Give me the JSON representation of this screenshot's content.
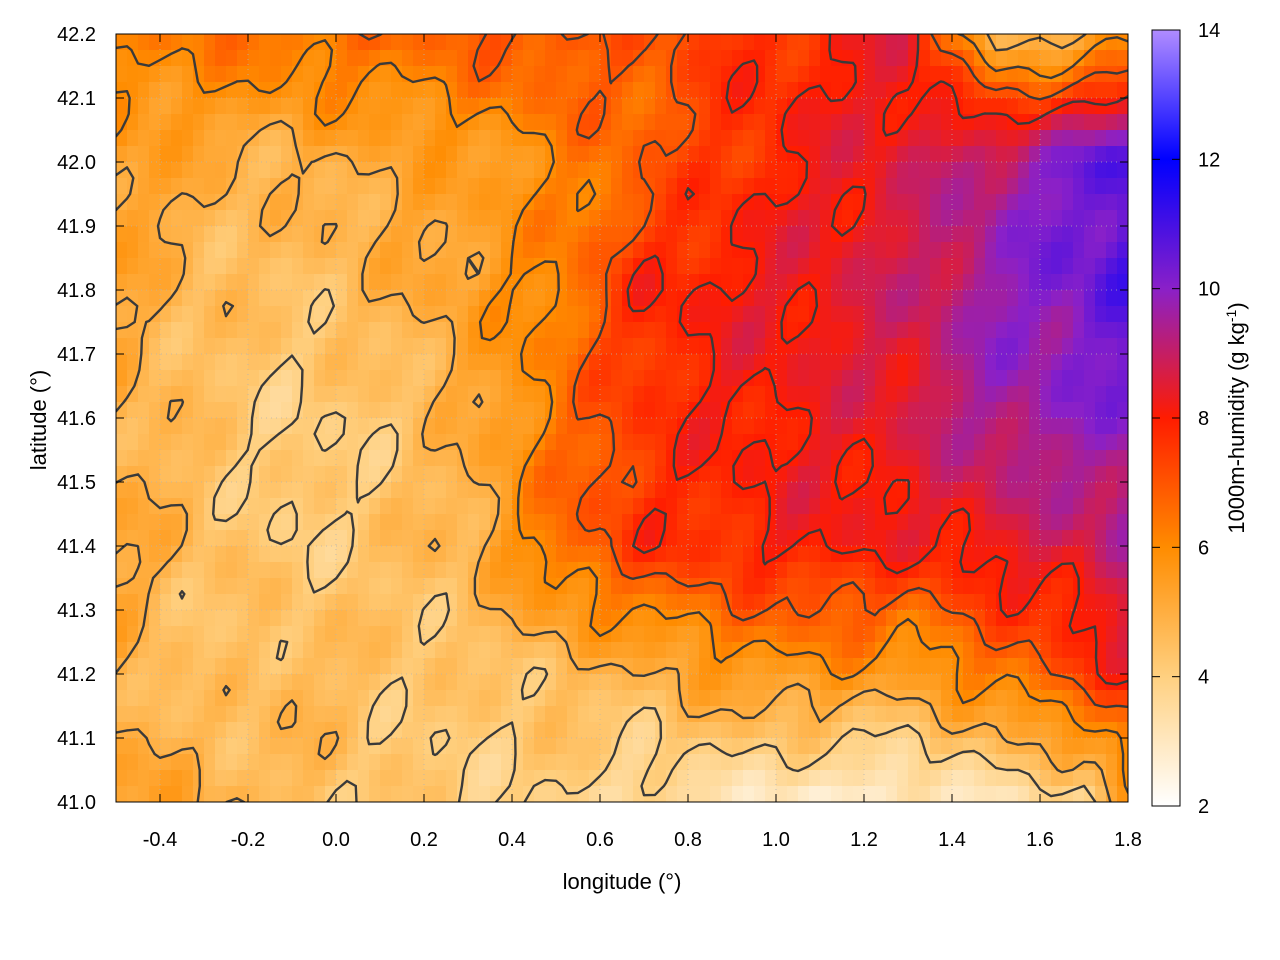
{
  "chart_data": {
    "type": "heatmap",
    "title": "",
    "xlabel": "longitude (°)",
    "ylabel": "latitude (°)",
    "colorbar_label": "1000m-humidity (g kg",
    "colorbar_label_sup": "-1",
    "colorbar_label_end": ")",
    "xlim": [
      -0.5,
      1.8
    ],
    "ylim": [
      41.0,
      42.2
    ],
    "zlim": [
      2,
      14
    ],
    "x_ticks": [
      -0.4,
      -0.2,
      0.0,
      0.2,
      0.4,
      0.6,
      0.8,
      1.0,
      1.2,
      1.4,
      1.6,
      1.8
    ],
    "x_tick_labels": [
      "-0.4",
      "-0.2",
      "0.0",
      "0.2",
      "0.4",
      "0.6",
      "0.8",
      "1.0",
      "1.2",
      "1.4",
      "1.6",
      "1.8"
    ],
    "y_ticks": [
      41.0,
      41.1,
      41.2,
      41.3,
      41.4,
      41.5,
      41.6,
      41.7,
      41.8,
      41.9,
      42.0,
      42.1,
      42.2
    ],
    "y_tick_labels": [
      "41.0",
      "41.1",
      "41.2",
      "41.3",
      "41.4",
      "41.5",
      "41.6",
      "41.7",
      "41.8",
      "41.9",
      "42.0",
      "42.1",
      "42.2"
    ],
    "z_ticks": [
      2,
      4,
      6,
      8,
      10,
      12,
      14
    ],
    "z_tick_labels": [
      "2",
      "4",
      "6",
      "8",
      "10",
      "12",
      "14"
    ],
    "colormap": [
      {
        "value": 2,
        "color": "#ffffff"
      },
      {
        "value": 4,
        "color": "#ffd080"
      },
      {
        "value": 6,
        "color": "#ff8c00"
      },
      {
        "value": 8,
        "color": "#ff1c00"
      },
      {
        "value": 10,
        "color": "#8a20c8"
      },
      {
        "value": 12,
        "color": "#0000ff"
      },
      {
        "value": 14,
        "color": "#b08cff"
      }
    ],
    "grid": true,
    "contour_levels": [
      4,
      5,
      6,
      7,
      8
    ],
    "field_samples": {
      "lon": [
        -0.5,
        -0.3,
        -0.1,
        0.1,
        0.3,
        0.5,
        0.7,
        0.9,
        1.1,
        1.3,
        1.5,
        1.7,
        1.8
      ],
      "lat": [
        41.0,
        41.2,
        41.4,
        41.6,
        41.8,
        42.0,
        42.2
      ],
      "humidity": [
        [
          5.4,
          5.0,
          4.6,
          4.2,
          4.0,
          4.0,
          3.4,
          3.2,
          2.6,
          2.8,
          3.2,
          3.6,
          5.6
        ],
        [
          5.0,
          4.2,
          4.8,
          4.4,
          4.2,
          4.6,
          4.8,
          5.6,
          5.8,
          5.4,
          6.4,
          7.4,
          8.0
        ],
        [
          5.2,
          4.6,
          4.0,
          4.4,
          4.8,
          6.6,
          7.6,
          7.8,
          8.2,
          8.0,
          8.4,
          8.8,
          9.4
        ],
        [
          5.0,
          4.4,
          4.0,
          4.2,
          5.0,
          6.4,
          7.6,
          8.0,
          8.2,
          8.6,
          9.6,
          9.8,
          10.0
        ],
        [
          5.2,
          4.6,
          4.4,
          4.8,
          5.4,
          6.2,
          7.8,
          8.2,
          8.4,
          8.8,
          9.8,
          10.4,
          10.8
        ],
        [
          5.6,
          5.0,
          4.8,
          5.2,
          5.4,
          6.0,
          6.8,
          7.6,
          8.2,
          8.6,
          9.4,
          10.4,
          11.0
        ],
        [
          6.2,
          6.4,
          6.6,
          6.6,
          6.8,
          7.2,
          6.8,
          7.6,
          7.8,
          8.4,
          4.6,
          5.0,
          5.4
        ]
      ]
    }
  }
}
